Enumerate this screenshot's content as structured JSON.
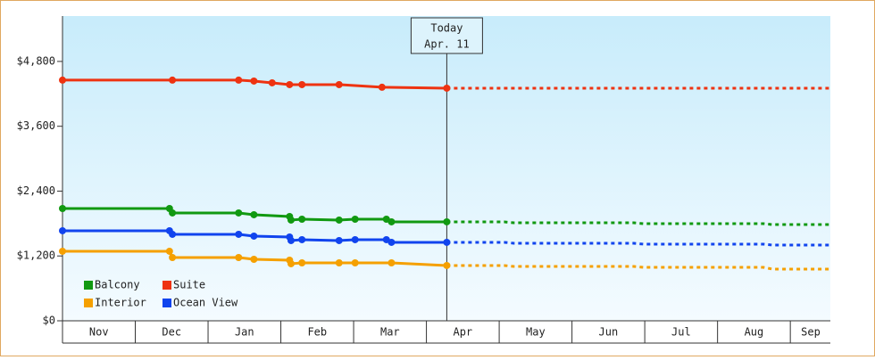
{
  "chart_data": {
    "type": "line",
    "xlim": [
      0,
      10.55
    ],
    "xticks": [
      {
        "value": 0.5,
        "label": "Nov"
      },
      {
        "value": 1.5,
        "label": "Dec"
      },
      {
        "value": 2.5,
        "label": "Jan"
      },
      {
        "value": 3.5,
        "label": "Feb"
      },
      {
        "value": 4.5,
        "label": "Mar"
      },
      {
        "value": 5.5,
        "label": "Apr"
      },
      {
        "value": 6.5,
        "label": "May"
      },
      {
        "value": 7.5,
        "label": "Jun"
      },
      {
        "value": 8.5,
        "label": "Jul"
      },
      {
        "value": 9.5,
        "label": "Aug"
      },
      {
        "value": 10.28,
        "label": "Sep"
      }
    ],
    "ylim": [
      0,
      5640
    ],
    "yticks": [
      {
        "value": 0,
        "label": "$0"
      },
      {
        "value": 1200,
        "label": "$1,200"
      },
      {
        "value": 2400,
        "label": "$2,400"
      },
      {
        "value": 3600,
        "label": "$3,600"
      },
      {
        "value": 4800,
        "label": "$4,800"
      }
    ],
    "annotation": {
      "x": 5.28,
      "lines": [
        "Today",
        "Apr. 11"
      ]
    },
    "legend": "bottom-left",
    "series": [
      {
        "name": "Balcony",
        "color": "#119911",
        "x": [
          0,
          1.47,
          1.51,
          2.42,
          2.63,
          3.12,
          3.14,
          3.29,
          3.8,
          4.02,
          4.45,
          4.52,
          5.28
        ],
        "values": [
          2078,
          2078,
          1996,
          1996,
          1963,
          1930,
          1864,
          1880,
          1864,
          1880,
          1880,
          1831,
          1831
        ],
        "projected_x": [
          5.28,
          6.07,
          6.2,
          7.85,
          7.98,
          9.63,
          9.75,
          10.55
        ],
        "projected_values": [
          1831,
          1831,
          1814,
          1814,
          1798,
          1798,
          1781,
          1781
        ]
      },
      {
        "name": "Suite",
        "color": "#ee3311",
        "x": [
          0,
          1.51,
          2.42,
          2.63,
          2.88,
          3.12,
          3.29,
          3.8,
          4.39,
          5.28
        ],
        "values": [
          4454,
          4454,
          4454,
          4437,
          4404,
          4371,
          4371,
          4371,
          4322,
          4305
        ],
        "projected_x": [
          5.28,
          10.55
        ],
        "projected_values": [
          4305,
          4305
        ]
      },
      {
        "name": "Interior",
        "color": "#f5a000",
        "x": [
          0,
          1.47,
          1.51,
          2.42,
          2.63,
          3.12,
          3.14,
          3.29,
          3.8,
          4.02,
          4.52,
          5.28
        ],
        "values": [
          1287,
          1287,
          1171,
          1171,
          1138,
          1122,
          1056,
          1072,
          1072,
          1072,
          1072,
          1023
        ],
        "projected_x": [
          5.28,
          6.07,
          6.2,
          7.85,
          7.98,
          9.63,
          9.75,
          10.55
        ],
        "projected_values": [
          1023,
          1023,
          1006,
          1006,
          990,
          990,
          957,
          957
        ]
      },
      {
        "name": "Ocean View",
        "color": "#1144ee",
        "x": [
          0,
          1.47,
          1.51,
          2.42,
          2.63,
          3.12,
          3.14,
          3.29,
          3.8,
          4.02,
          4.45,
          4.52,
          5.28
        ],
        "values": [
          1666,
          1666,
          1600,
          1600,
          1567,
          1551,
          1485,
          1501,
          1485,
          1501,
          1501,
          1452,
          1452
        ],
        "projected_x": [
          5.28,
          6.07,
          6.2,
          7.85,
          7.98,
          9.63,
          9.75,
          10.55
        ],
        "projected_values": [
          1452,
          1452,
          1435,
          1435,
          1419,
          1419,
          1402,
          1402
        ]
      }
    ]
  }
}
